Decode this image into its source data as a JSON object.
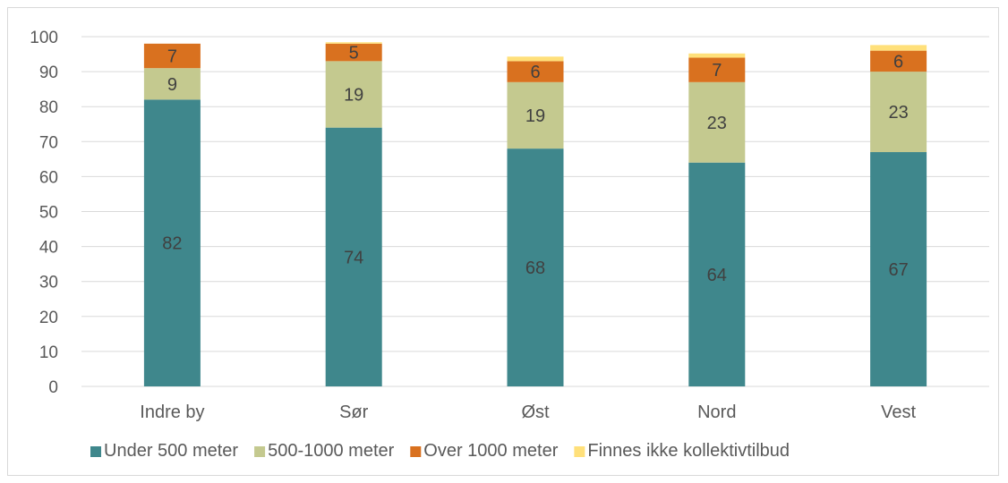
{
  "chart_data": {
    "type": "bar",
    "stacked": true,
    "title": "",
    "xlabel": "",
    "ylabel": "",
    "ylim": [
      0,
      100
    ],
    "yticks": [
      0,
      10,
      20,
      30,
      40,
      50,
      60,
      70,
      80,
      90,
      100
    ],
    "grid": true,
    "legend_position": "bottom",
    "categories": [
      "Indre by",
      "Sør",
      "Øst",
      "Nord",
      "Vest"
    ],
    "series": [
      {
        "name": "Under 500 meter",
        "color": "#3f878c",
        "values": [
          82,
          74,
          68,
          64,
          67
        ],
        "labels": [
          "82",
          "74",
          "68",
          "64",
          "67"
        ]
      },
      {
        "name": "500-1000 meter",
        "color": "#c4c98f",
        "values": [
          9,
          19,
          19,
          23,
          23
        ],
        "labels": [
          "9",
          "19",
          "19",
          "23",
          "23"
        ]
      },
      {
        "name": "Over 1000 meter",
        "color": "#d9711f",
        "values": [
          7,
          5,
          6,
          7,
          6
        ],
        "labels": [
          "7",
          "5",
          "6",
          "7",
          "6"
        ]
      },
      {
        "name": "Finnes ikke kollektivtilbud",
        "color": "#ffe07a",
        "values": [
          0,
          0.4,
          1.3,
          1.2,
          1.6
        ],
        "labels": [
          "",
          "",
          "",
          "",
          ""
        ]
      }
    ]
  }
}
